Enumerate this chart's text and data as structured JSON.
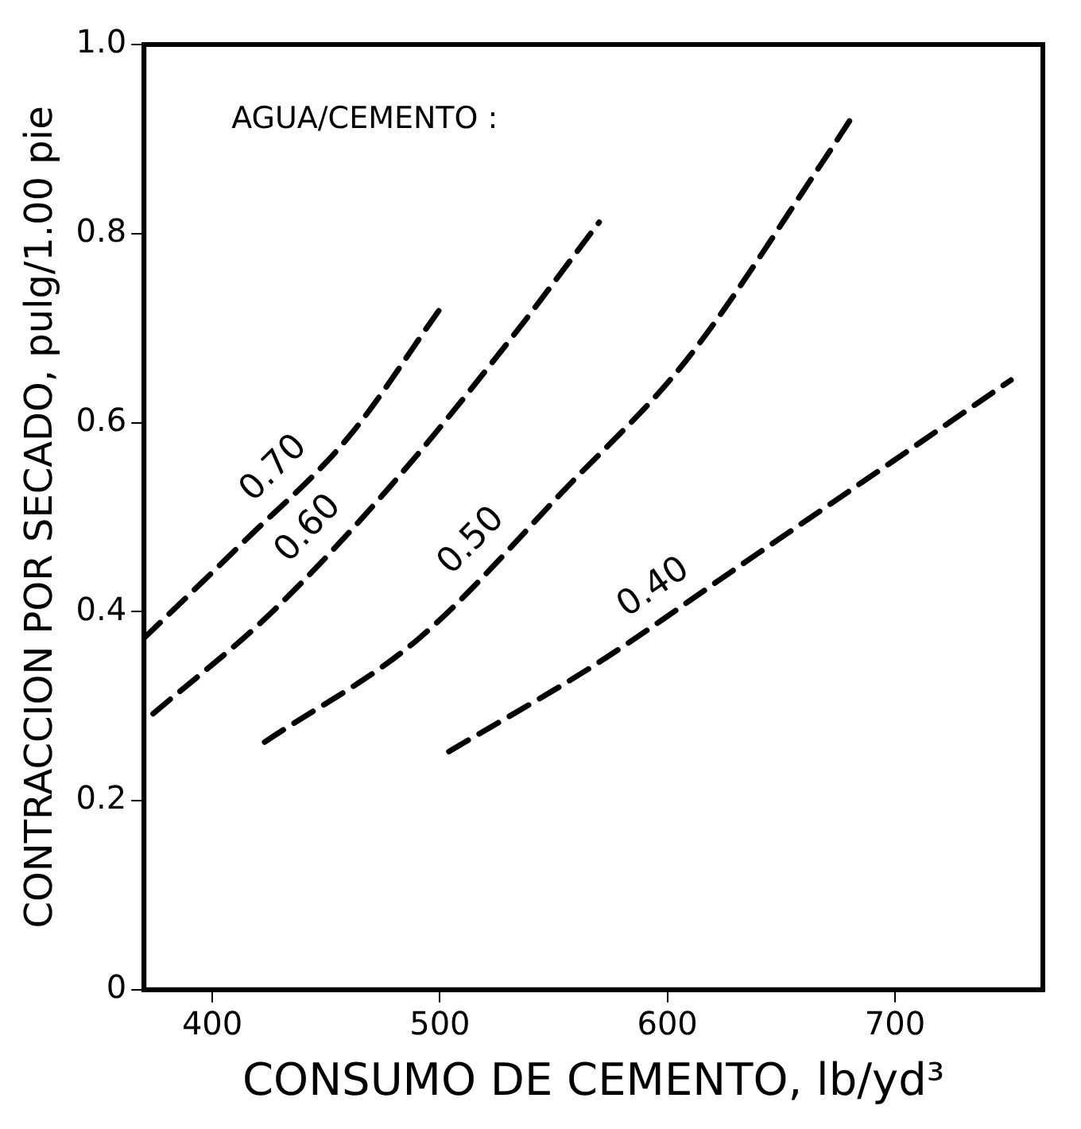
{
  "chart_data": {
    "type": "line",
    "xlabel": "CONSUMO DE CEMENTO, lb/yd³",
    "ylabel": "CONTRACCION POR SECADO, pulg/1.00 pie",
    "annotations": [
      "AGUA/CEMENTO :"
    ],
    "xlim": [
      370,
      765
    ],
    "xticks": [
      400,
      500,
      600,
      700
    ],
    "ylim": [
      0,
      1
    ],
    "yticks": [
      0,
      0.2,
      0.4,
      0.6,
      0.8,
      {
        "value": 1,
        "label": "1.0"
      }
    ],
    "grid": false,
    "legend": false,
    "marker": "none",
    "line_style": "dashed",
    "series": [
      {
        "name": "0.70",
        "color": "#000000",
        "x": [
          370,
          413,
          460,
          500
        ],
        "values": [
          0.372,
          0.472,
          0.585,
          0.72
        ]
      },
      {
        "name": "0.60",
        "color": "#000000",
        "x": [
          374,
          426,
          478,
          530,
          570
        ],
        "values": [
          0.292,
          0.399,
          0.532,
          0.685,
          0.812
        ]
      },
      {
        "name": "0.50",
        "color": "#000000",
        "x": [
          423,
          491,
          556,
          608,
          668,
          683
        ],
        "values": [
          0.262,
          0.372,
          0.532,
          0.665,
          0.875,
          0.93
        ]
      },
      {
        "name": "0.40",
        "color": "#000000",
        "x": [
          504,
          569,
          634,
          699,
          751
        ],
        "values": [
          0.252,
          0.345,
          0.452,
          0.559,
          0.645
        ]
      }
    ]
  }
}
